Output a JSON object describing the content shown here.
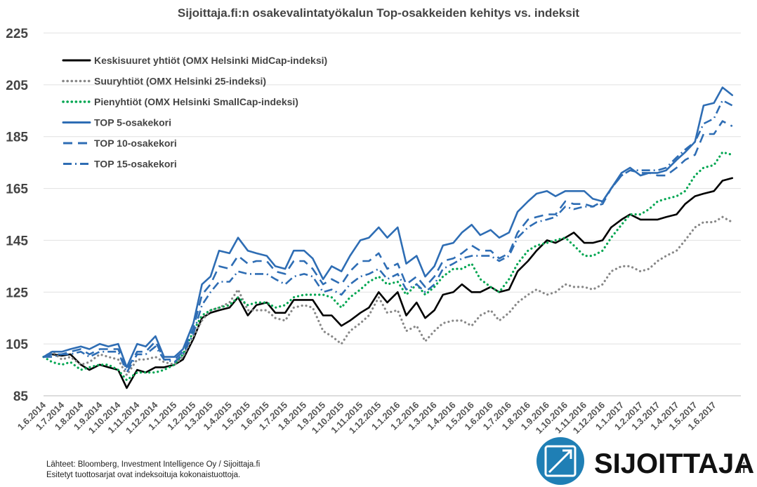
{
  "chart_data": {
    "type": "line",
    "title": "Sijoittaja.fi:n osakevalintatyökalun Top-osakkeiden kehitys vs. indeksit",
    "ylim": [
      85,
      225
    ],
    "yticks": [
      85,
      105,
      125,
      145,
      165,
      185,
      205,
      225
    ],
    "xlim": [
      "1.6.2014",
      "15.7.2017"
    ],
    "xticks": [
      "1.6.2014",
      "1.7.2014",
      "1.8.2014",
      "1.9.2014",
      "1.10.2014",
      "1.11.2014",
      "1.12.2014",
      "1.1.2015",
      "1.2.2015",
      "1.3.2015",
      "1.4.2015",
      "1.5.2015",
      "1.6.2015",
      "1.7.2015",
      "1.8.2015",
      "1.9.2015",
      "1.10.2015",
      "1.11.2015",
      "1.12.2015",
      "1.1.2016",
      "1.2.2016",
      "1.3.2016",
      "1.4.2016",
      "1.5.2016",
      "1.6.2016",
      "1.7.2016",
      "1.8.2016",
      "1.9.2016",
      "1.10.2016",
      "1.11.2016",
      "1.12.2016",
      "1.1.2017",
      "1.2.2017",
      "1.3.2017",
      "1.4.2017",
      "1.5.2017",
      "1.6.2017"
    ],
    "grid": "horizontal",
    "legend_position": "top-left",
    "series": [
      {
        "name": "Keskisuuret yhtiöt (OMX Helsinki MidCap-indeksi)",
        "color": "#000000",
        "style": "solid",
        "x": [
          "1.6.2014",
          "15.6.2014",
          "1.7.2014",
          "15.7.2014",
          "1.8.2014",
          "15.8.2014",
          "1.9.2014",
          "15.9.2014",
          "1.10.2014",
          "15.10.2014",
          "1.11.2014",
          "15.11.2014",
          "1.12.2014",
          "15.12.2014",
          "1.1.2015",
          "15.1.2015",
          "1.2.2015",
          "15.2.2015",
          "1.3.2015",
          "15.3.2015",
          "1.4.2015",
          "15.4.2015",
          "1.5.2015",
          "15.5.2015",
          "1.6.2015",
          "15.6.2015",
          "1.7.2015",
          "15.7.2015",
          "1.8.2015",
          "15.8.2015",
          "1.9.2015",
          "15.9.2015",
          "1.10.2015",
          "15.10.2015",
          "1.11.2015",
          "15.11.2015",
          "1.12.2015",
          "15.12.2015",
          "1.1.2016",
          "15.1.2016",
          "1.2.2016",
          "15.2.2016",
          "1.3.2016",
          "15.3.2016",
          "1.4.2016",
          "15.4.2016",
          "1.5.2016",
          "15.5.2016",
          "1.6.2016",
          "15.6.2016",
          "1.7.2016",
          "15.7.2016",
          "1.8.2016",
          "15.8.2016",
          "1.9.2016",
          "15.9.2016",
          "1.10.2016",
          "15.10.2016",
          "1.11.2016",
          "15.11.2016",
          "1.12.2016",
          "15.12.2016",
          "1.1.2017",
          "15.1.2017",
          "1.2.2017",
          "15.2.2017",
          "1.3.2017",
          "15.3.2017",
          "1.4.2017",
          "15.4.2017",
          "1.5.2017",
          "15.5.2017",
          "1.6.2017",
          "15.6.2017",
          "1.7.2017"
        ],
        "y": [
          100,
          101,
          100.5,
          101,
          97,
          95,
          97,
          96,
          95,
          88,
          95,
          94,
          96,
          96,
          97,
          99,
          107,
          115,
          117,
          118,
          119,
          123,
          116,
          120,
          121,
          117,
          117,
          122,
          122,
          122,
          116,
          116,
          112,
          114,
          117,
          119,
          125,
          121,
          125,
          116,
          121,
          115,
          118,
          124,
          125,
          128,
          125,
          125,
          127,
          125,
          126,
          133,
          137,
          141,
          145,
          144,
          146,
          148,
          144,
          144,
          145,
          150,
          153,
          155,
          153,
          153,
          153,
          154,
          155,
          159,
          162,
          163,
          164,
          168,
          169
        ]
      },
      {
        "name": "Suuryhtiöt (OMX Helsinki 25-indeksi)",
        "color": "#888888",
        "style": "dotted",
        "x": [
          "1.6.2014",
          "15.6.2014",
          "1.7.2014",
          "15.7.2014",
          "1.8.2014",
          "15.8.2014",
          "1.9.2014",
          "15.9.2014",
          "1.10.2014",
          "15.10.2014",
          "1.11.2014",
          "15.11.2014",
          "1.12.2014",
          "15.12.2014",
          "1.1.2015",
          "15.1.2015",
          "1.2.2015",
          "15.2.2015",
          "1.3.2015",
          "15.3.2015",
          "1.4.2015",
          "15.4.2015",
          "1.5.2015",
          "15.5.2015",
          "1.6.2015",
          "15.6.2015",
          "1.7.2015",
          "15.7.2015",
          "1.8.2015",
          "15.8.2015",
          "1.9.2015",
          "15.9.2015",
          "1.10.2015",
          "15.10.2015",
          "1.11.2015",
          "15.11.2015",
          "1.12.2015",
          "15.12.2015",
          "1.1.2016",
          "15.1.2016",
          "1.2.2016",
          "15.2.2016",
          "1.3.2016",
          "15.3.2016",
          "1.4.2016",
          "15.4.2016",
          "1.5.2016",
          "15.5.2016",
          "1.6.2016",
          "15.6.2016",
          "1.7.2016",
          "15.7.2016",
          "1.8.2016",
          "15.8.2016",
          "1.9.2016",
          "15.9.2016",
          "1.10.2016",
          "15.10.2016",
          "1.11.2016",
          "15.11.2016",
          "1.12.2016",
          "15.12.2016",
          "1.1.2017",
          "15.1.2017",
          "1.2.2017",
          "15.2.2017",
          "1.3.2017",
          "15.3.2017",
          "1.4.2017",
          "15.4.2017",
          "1.5.2017",
          "15.5.2017",
          "1.6.2017",
          "15.6.2017",
          "1.7.2017"
        ],
        "y": [
          100,
          102,
          99,
          100,
          97,
          98,
          101,
          100,
          99,
          93,
          99,
          99,
          100,
          98,
          97,
          100,
          108,
          114,
          118,
          119,
          121,
          126,
          118,
          118,
          118,
          115,
          114,
          119,
          120,
          119,
          110,
          108,
          105,
          110,
          113,
          116,
          123,
          117,
          118,
          110,
          112,
          106,
          110,
          113,
          114,
          114,
          112,
          116,
          118,
          114,
          117,
          121,
          124,
          126,
          124,
          125,
          128,
          127,
          127,
          126,
          128,
          133,
          135,
          135,
          133,
          134,
          137,
          139,
          141,
          145,
          150,
          152,
          152,
          154,
          152
        ]
      },
      {
        "name": "Pienyhtiöt (OMX Helsinki SmallCap-indeksi)",
        "color": "#00A651",
        "style": "dotted",
        "x": [
          "1.6.2014",
          "15.6.2014",
          "1.7.2014",
          "15.7.2014",
          "1.8.2014",
          "15.8.2014",
          "1.9.2014",
          "15.9.2014",
          "1.10.2014",
          "15.10.2014",
          "1.11.2014",
          "15.11.2014",
          "1.12.2014",
          "15.12.2014",
          "1.1.2015",
          "15.1.2015",
          "1.2.2015",
          "15.2.2015",
          "1.3.2015",
          "15.3.2015",
          "1.4.2015",
          "15.4.2015",
          "1.5.2015",
          "15.5.2015",
          "1.6.2015",
          "15.6.2015",
          "1.7.2015",
          "15.7.2015",
          "1.8.2015",
          "15.8.2015",
          "1.9.2015",
          "15.9.2015",
          "1.10.2015",
          "15.10.2015",
          "1.11.2015",
          "15.11.2015",
          "1.12.2015",
          "15.12.2015",
          "1.1.2016",
          "15.1.2016",
          "1.2.2016",
          "15.2.2016",
          "1.3.2016",
          "15.3.2016",
          "1.4.2016",
          "15.4.2016",
          "1.5.2016",
          "15.5.2016",
          "1.6.2016",
          "15.6.2016",
          "1.7.2016",
          "15.7.2016",
          "1.8.2016",
          "15.8.2016",
          "1.9.2016",
          "15.9.2016",
          "1.10.2016",
          "15.10.2016",
          "1.11.2016",
          "15.11.2016",
          "1.12.2016",
          "15.12.2016",
          "1.1.2017",
          "15.1.2017",
          "1.2.2017",
          "15.2.2017",
          "1.3.2017",
          "15.3.2017",
          "1.4.2017",
          "15.4.2017",
          "1.5.2017",
          "15.5.2017",
          "1.6.2017",
          "15.6.2017",
          "1.7.2017"
        ],
        "y": [
          100,
          98,
          97,
          98,
          95,
          96,
          97,
          97,
          95,
          91,
          94,
          94,
          94,
          95,
          97,
          101,
          110,
          116,
          118,
          119,
          120,
          123,
          120,
          121,
          121,
          119,
          120,
          123,
          124,
          124,
          124,
          123,
          119,
          123,
          126,
          129,
          131,
          128,
          129,
          124,
          128,
          124,
          127,
          131,
          134,
          134,
          136,
          130,
          127,
          125,
          130,
          136,
          141,
          143,
          144,
          145,
          146,
          143,
          139,
          139,
          141,
          146,
          151,
          155,
          155,
          157,
          160,
          161,
          162,
          164,
          170,
          173,
          174,
          179,
          178
        ]
      },
      {
        "name": "TOP 5-osakekori",
        "color": "#2E6DB4",
        "style": "solid",
        "x": [
          "1.6.2014",
          "15.6.2014",
          "1.7.2014",
          "15.7.2014",
          "1.8.2014",
          "15.8.2014",
          "1.9.2014",
          "15.9.2014",
          "1.10.2014",
          "15.10.2014",
          "1.11.2014",
          "15.11.2014",
          "1.12.2014",
          "15.12.2014",
          "1.1.2015",
          "15.1.2015",
          "1.2.2015",
          "15.2.2015",
          "1.3.2015",
          "15.3.2015",
          "1.4.2015",
          "15.4.2015",
          "1.5.2015",
          "15.5.2015",
          "1.6.2015",
          "15.6.2015",
          "1.7.2015",
          "15.7.2015",
          "1.8.2015",
          "15.8.2015",
          "1.9.2015",
          "15.9.2015",
          "1.10.2015",
          "15.10.2015",
          "1.11.2015",
          "15.11.2015",
          "1.12.2015",
          "15.12.2015",
          "1.1.2016",
          "15.1.2016",
          "1.2.2016",
          "15.2.2016",
          "1.3.2016",
          "15.3.2016",
          "1.4.2016",
          "15.4.2016",
          "1.5.2016",
          "15.5.2016",
          "1.6.2016",
          "15.6.2016",
          "1.7.2016",
          "15.7.2016",
          "1.8.2016",
          "15.8.2016",
          "1.9.2016",
          "15.9.2016",
          "1.10.2016",
          "15.10.2016",
          "1.11.2016",
          "15.11.2016",
          "1.12.2016",
          "15.12.2016",
          "1.1.2017",
          "15.1.2017",
          "1.2.2017",
          "15.2.2017",
          "1.3.2017",
          "15.3.2017",
          "1.4.2017",
          "15.4.2017",
          "1.5.2017",
          "15.5.2017",
          "1.6.2017",
          "15.6.2017",
          "1.7.2017"
        ],
        "y": [
          100,
          102,
          102,
          103,
          104,
          103,
          105,
          104,
          105,
          96,
          105,
          104,
          108,
          100,
          100,
          103,
          113,
          128,
          131,
          141,
          140,
          146,
          141,
          140,
          139,
          135,
          134,
          141,
          141,
          138,
          130,
          135,
          133,
          139,
          145,
          146,
          150,
          146,
          150,
          136,
          139,
          131,
          135,
          143,
          144,
          148,
          151,
          147,
          149,
          146,
          148,
          156,
          160,
          163,
          164,
          162,
          164,
          164,
          164,
          161,
          160,
          165,
          171,
          173,
          170,
          171,
          171,
          172,
          176,
          179,
          183,
          197,
          198,
          204,
          201
        ]
      },
      {
        "name": "TOP 10-osakekori",
        "color": "#2E6DB4",
        "style": "dashed",
        "x": [
          "1.6.2014",
          "15.6.2014",
          "1.7.2014",
          "15.7.2014",
          "1.8.2014",
          "15.8.2014",
          "1.9.2014",
          "15.9.2014",
          "1.10.2014",
          "15.10.2014",
          "1.11.2014",
          "15.11.2014",
          "1.12.2014",
          "15.12.2014",
          "1.1.2015",
          "15.1.2015",
          "1.2.2015",
          "15.2.2015",
          "1.3.2015",
          "15.3.2015",
          "1.4.2015",
          "15.4.2015",
          "1.5.2015",
          "15.5.2015",
          "1.6.2015",
          "15.6.2015",
          "1.7.2015",
          "15.7.2015",
          "1.8.2015",
          "15.8.2015",
          "1.9.2015",
          "15.9.2015",
          "1.10.2015",
          "15.10.2015",
          "1.11.2015",
          "15.11.2015",
          "1.12.2015",
          "15.12.2015",
          "1.1.2016",
          "15.1.2016",
          "1.2.2016",
          "15.2.2016",
          "1.3.2016",
          "15.3.2016",
          "1.4.2016",
          "15.4.2016",
          "1.5.2016",
          "15.5.2016",
          "1.6.2016",
          "15.6.2016",
          "1.7.2016",
          "15.7.2016",
          "1.8.2016",
          "15.8.2016",
          "1.9.2016",
          "15.9.2016",
          "1.10.2016",
          "15.10.2016",
          "1.11.2016",
          "15.11.2016",
          "1.12.2016",
          "15.12.2016",
          "1.1.2017",
          "15.1.2017",
          "1.2.2017",
          "15.2.2017",
          "1.3.2017",
          "15.3.2017",
          "1.4.2017",
          "15.4.2017",
          "1.5.2017",
          "15.5.2017",
          "1.6.2017",
          "15.6.2017",
          "1.7.2017"
        ],
        "y": [
          100,
          101,
          101,
          102,
          103,
          101,
          103,
          103,
          103,
          95,
          102,
          102,
          106,
          99,
          99,
          102,
          111,
          124,
          128,
          135,
          134,
          139,
          136,
          137,
          137,
          133,
          132,
          137,
          137,
          134,
          128,
          130,
          128,
          133,
          137,
          137,
          140,
          134,
          136,
          128,
          131,
          127,
          131,
          137,
          138,
          140,
          143,
          141,
          141,
          138,
          140,
          148,
          153,
          154,
          155,
          155,
          160,
          159,
          159,
          158,
          159,
          165,
          170,
          172,
          171,
          171,
          170,
          170,
          173,
          176,
          178,
          186,
          186,
          191,
          189
        ]
      },
      {
        "name": "TOP 15-osakekori",
        "color": "#2E6DB4",
        "style": "dashdot",
        "x": [
          "1.6.2014",
          "15.6.2014",
          "1.7.2014",
          "15.7.2014",
          "1.8.2014",
          "15.8.2014",
          "1.9.2014",
          "15.9.2014",
          "1.10.2014",
          "15.10.2014",
          "1.11.2014",
          "15.11.2014",
          "1.12.2014",
          "15.12.2014",
          "1.1.2015",
          "15.1.2015",
          "1.2.2015",
          "15.2.2015",
          "1.3.2015",
          "15.3.2015",
          "1.4.2015",
          "15.4.2015",
          "1.5.2015",
          "15.5.2015",
          "1.6.2015",
          "15.6.2015",
          "1.7.2015",
          "15.7.2015",
          "1.8.2015",
          "15.8.2015",
          "1.9.2015",
          "15.9.2015",
          "1.10.2015",
          "15.10.2015",
          "1.11.2015",
          "15.11.2015",
          "1.12.2015",
          "15.12.2015",
          "1.1.2016",
          "15.1.2016",
          "1.2.2016",
          "15.2.2016",
          "1.3.2016",
          "15.3.2016",
          "1.4.2016",
          "15.4.2016",
          "1.5.2016",
          "15.5.2016",
          "1.6.2016",
          "15.6.2016",
          "1.7.2016",
          "15.7.2016",
          "1.8.2016",
          "15.8.2016",
          "1.9.2016",
          "15.9.2016",
          "1.10.2016",
          "15.10.2016",
          "1.11.2016",
          "15.11.2016",
          "1.12.2016",
          "15.12.2016",
          "1.1.2017",
          "15.1.2017",
          "1.2.2017",
          "15.2.2017",
          "1.3.2017",
          "15.3.2017",
          "1.4.2017",
          "15.4.2017",
          "1.5.2017",
          "15.5.2017",
          "1.6.2017",
          "15.6.2017",
          "1.7.2017"
        ],
        "y": [
          100,
          100,
          101,
          101,
          102,
          100,
          102,
          102,
          102,
          94,
          101,
          101,
          104,
          99,
          98,
          101,
          109,
          120,
          125,
          129,
          129,
          133,
          132,
          132,
          132,
          130,
          128,
          131,
          132,
          131,
          125,
          126,
          124,
          128,
          131,
          132,
          134,
          130,
          132,
          126,
          128,
          125,
          128,
          134,
          136,
          138,
          139,
          139,
          139,
          137,
          139,
          146,
          150,
          152,
          153,
          154,
          158,
          157,
          158,
          158,
          160,
          165,
          170,
          172,
          172,
          172,
          172,
          173,
          177,
          180,
          183,
          190,
          192,
          199,
          197
        ]
      }
    ]
  },
  "footer": {
    "source_line": "Lähteet: Bloomberg, Investment Intelligence Oy / Sijoittaja.fi",
    "note_line": "Esitetyt tuottosarjat ovat indeksoituja kokonaistuottoja."
  },
  "brand": {
    "name": "SIJOITTAJA",
    "suffix": ".fi",
    "icon": "arrow-up-right-icon",
    "color": "#1F7FB5"
  }
}
